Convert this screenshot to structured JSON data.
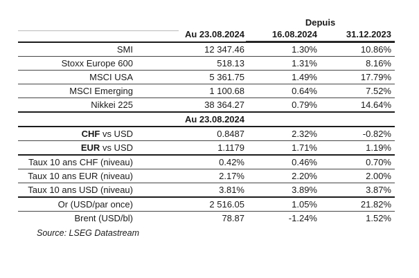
{
  "table": {
    "group_header": "Depuis",
    "col_headers": {
      "level": "Au 23.08.2024",
      "since_1": "16.08.2024",
      "since_2": "31.12.2023"
    },
    "section_header": "Au 23.08.2024",
    "rows": [
      {
        "label_bold": "",
        "label": "SMI",
        "level": "12 347.46",
        "since_1": "1.30%",
        "since_2": "10.86%"
      },
      {
        "label_bold": "",
        "label": "Stoxx Europe 600",
        "level": "518.13",
        "since_1": "1.31%",
        "since_2": "8.16%"
      },
      {
        "label_bold": "",
        "label": "MSCI USA",
        "level": "5 361.75",
        "since_1": "1.49%",
        "since_2": "17.79%"
      },
      {
        "label_bold": "",
        "label": "MSCI Emerging",
        "level": "1 100.68",
        "since_1": "0.64%",
        "since_2": "7.52%"
      },
      {
        "label_bold": "",
        "label": "Nikkei 225",
        "level": "38 364.27",
        "since_1": "0.79%",
        "since_2": "14.64%"
      },
      {
        "label_bold": "CHF",
        "label": " vs USD",
        "level": "0.8487",
        "since_1": "2.32%",
        "since_2": "-0.82%"
      },
      {
        "label_bold": "EUR",
        "label": " vs USD",
        "level": "1.1179",
        "since_1": "1.71%",
        "since_2": "1.19%"
      },
      {
        "label_bold": "",
        "label": "Taux 10 ans CHF (niveau)",
        "level": "0.42%",
        "since_1": "0.46%",
        "since_2": "0.70%"
      },
      {
        "label_bold": "",
        "label": "Taux 10 ans EUR (niveau)",
        "level": "2.17%",
        "since_1": "2.20%",
        "since_2": "2.00%"
      },
      {
        "label_bold": "",
        "label": "Taux 10 ans USD (niveau)",
        "level": "3.81%",
        "since_1": "3.89%",
        "since_2": "3.87%"
      },
      {
        "label_bold": "",
        "label": "Or (USD/par once)",
        "level": "2 516.05",
        "since_1": "1.05%",
        "since_2": "21.82%"
      },
      {
        "label_bold": "",
        "label": "Brent (USD/bl)",
        "level": "78.87",
        "since_1": "-1.24%",
        "since_2": "1.52%"
      }
    ],
    "source": "Source: LSEG Datastream"
  }
}
